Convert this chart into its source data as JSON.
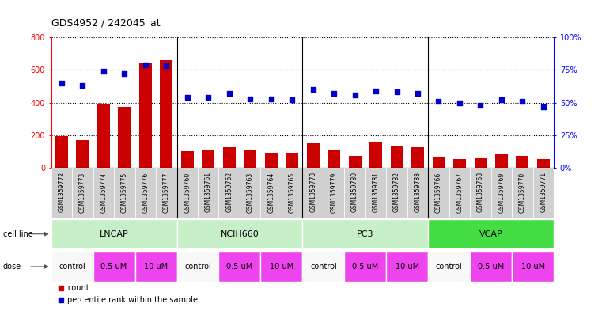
{
  "title": "GDS4952 / 242045_at",
  "samples": [
    "GSM1359772",
    "GSM1359773",
    "GSM1359774",
    "GSM1359775",
    "GSM1359776",
    "GSM1359777",
    "GSM1359760",
    "GSM1359761",
    "GSM1359762",
    "GSM1359763",
    "GSM1359764",
    "GSM1359765",
    "GSM1359778",
    "GSM1359779",
    "GSM1359780",
    "GSM1359781",
    "GSM1359782",
    "GSM1359783",
    "GSM1359766",
    "GSM1359767",
    "GSM1359768",
    "GSM1359769",
    "GSM1359770",
    "GSM1359771"
  ],
  "counts": [
    195,
    170,
    390,
    375,
    640,
    660,
    105,
    108,
    128,
    110,
    95,
    95,
    150,
    108,
    75,
    155,
    130,
    125,
    65,
    55,
    60,
    90,
    75,
    55
  ],
  "percentiles": [
    65,
    63,
    74,
    72,
    79,
    78,
    54,
    54,
    57,
    53,
    53,
    52,
    60,
    57,
    56,
    59,
    58,
    57,
    51,
    50,
    48,
    52,
    51,
    47
  ],
  "cell_lines": [
    {
      "name": "LNCAP",
      "start": 0,
      "end": 6,
      "color": "#c8f0c8"
    },
    {
      "name": "NCIH660",
      "start": 6,
      "end": 12,
      "color": "#c8f0c8"
    },
    {
      "name": "PC3",
      "start": 12,
      "end": 18,
      "color": "#c8f0c8"
    },
    {
      "name": "VCAP",
      "start": 18,
      "end": 24,
      "color": "#44dd44"
    }
  ],
  "doses": [
    {
      "label": "control",
      "start": 0,
      "end": 2,
      "color": "#f8f8f8"
    },
    {
      "label": "0.5 uM",
      "start": 2,
      "end": 4,
      "color": "#ee44ee"
    },
    {
      "label": "10 uM",
      "start": 4,
      "end": 6,
      "color": "#ee44ee"
    },
    {
      "label": "control",
      "start": 6,
      "end": 8,
      "color": "#f8f8f8"
    },
    {
      "label": "0.5 uM",
      "start": 8,
      "end": 10,
      "color": "#ee44ee"
    },
    {
      "label": "10 uM",
      "start": 10,
      "end": 12,
      "color": "#ee44ee"
    },
    {
      "label": "control",
      "start": 12,
      "end": 14,
      "color": "#f8f8f8"
    },
    {
      "label": "0.5 uM",
      "start": 14,
      "end": 16,
      "color": "#ee44ee"
    },
    {
      "label": "10 uM",
      "start": 16,
      "end": 18,
      "color": "#ee44ee"
    },
    {
      "label": "control",
      "start": 18,
      "end": 20,
      "color": "#f8f8f8"
    },
    {
      "label": "0.5 uM",
      "start": 20,
      "end": 22,
      "color": "#ee44ee"
    },
    {
      "label": "10 uM",
      "start": 22,
      "end": 24,
      "color": "#ee44ee"
    }
  ],
  "bar_color": "#cc0000",
  "dot_color": "#0000cc",
  "left_ylim": [
    0,
    800
  ],
  "left_yticks": [
    0,
    200,
    400,
    600,
    800
  ],
  "right_ylim": [
    0,
    100
  ],
  "right_yticks": [
    0,
    25,
    50,
    75,
    100
  ],
  "right_yticklabels": [
    "0%",
    "25%",
    "50%",
    "75%",
    "100%"
  ],
  "group_separators": [
    5.5,
    11.5,
    17.5
  ],
  "n_samples": 24
}
